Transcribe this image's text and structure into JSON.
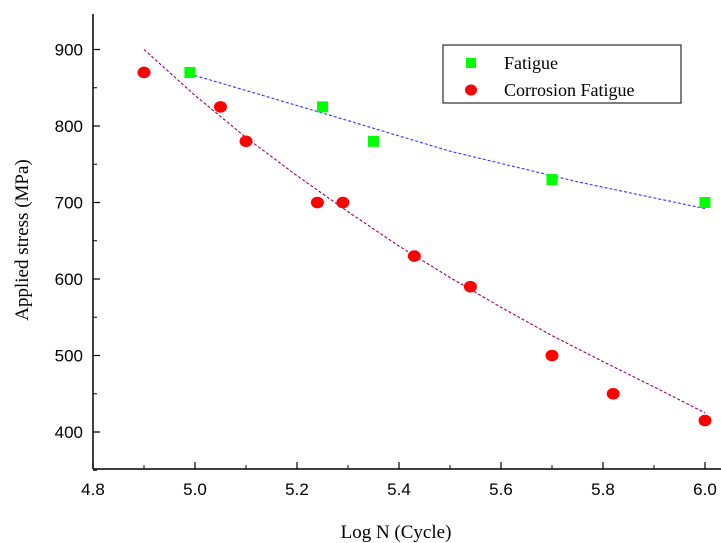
{
  "chart_data": {
    "type": "scatter",
    "title": "",
    "xlabel": "Log N (Cycle)",
    "ylabel": "Applied stress (MPa)",
    "xlim": [
      4.8,
      6.1
    ],
    "ylim": [
      350,
      950
    ],
    "x_ticks": [
      4.8,
      5.0,
      5.2,
      5.4,
      5.6,
      5.8,
      6.0
    ],
    "y_ticks": [
      400,
      500,
      600,
      700,
      800,
      900
    ],
    "x_tick_labels": [
      "4.8",
      "5.0",
      "5.2",
      "5.4",
      "5.6",
      "5.8",
      "6.0"
    ],
    "y_tick_labels": [
      "400",
      "500",
      "600",
      "700",
      "800",
      "900"
    ],
    "grid": false,
    "legend_position": "top-right",
    "series": [
      {
        "name": "Fatigue",
        "marker": "square",
        "color": "#00ff00",
        "fit_color": "#3333ff",
        "x": [
          4.99,
          5.25,
          5.35,
          5.7,
          6.0
        ],
        "y": [
          870,
          825,
          780,
          730,
          700
        ],
        "fit_x": [
          4.99,
          5.25,
          5.5,
          5.75,
          6.0
        ],
        "fit_y": [
          868,
          817,
          767,
          727,
          692
        ]
      },
      {
        "name": "Corrosion Fatigue",
        "marker": "circle",
        "color": "#ff0000",
        "fit_color": "#990066",
        "x": [
          4.9,
          5.05,
          5.1,
          5.24,
          5.29,
          5.43,
          5.54,
          5.7,
          5.82,
          6.0
        ],
        "y": [
          870,
          825,
          780,
          700,
          700,
          630,
          590,
          500,
          450,
          415
        ],
        "fit_x": [
          4.9,
          5.0,
          5.1,
          5.2,
          5.3,
          5.4,
          5.5,
          5.6,
          5.7,
          5.8,
          5.9,
          6.0
        ],
        "fit_y": [
          900,
          840,
          785,
          735,
          688,
          643,
          602,
          563,
          526,
          492,
          459,
          425
        ]
      }
    ]
  }
}
